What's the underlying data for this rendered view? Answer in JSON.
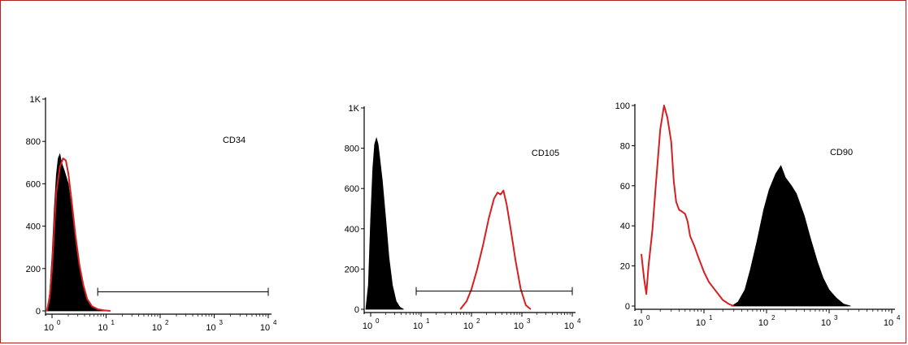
{
  "colors": {
    "frame": "#b22222",
    "control": "#000000",
    "stained": "#d62020",
    "axis": "#000000"
  },
  "chart_data": [
    {
      "type": "histogram",
      "marker": "CD34",
      "x_scale": "log",
      "xlim": [
        1,
        10000
      ],
      "ylim": [
        0,
        1000
      ],
      "y_ticks": [
        "0",
        "200",
        "400",
        "600",
        "800",
        "1K"
      ],
      "y_tick_values": [
        0,
        200,
        400,
        600,
        800,
        1000
      ],
      "x_ticks": [
        {
          "base": "10",
          "exp": "0"
        },
        {
          "base": "10",
          "exp": "1"
        },
        {
          "base": "10",
          "exp": "2"
        },
        {
          "base": "10",
          "exp": "3"
        },
        {
          "base": "10",
          "exp": "4"
        }
      ],
      "x_tick_values": [
        1,
        10,
        100,
        1000,
        10000
      ],
      "gate": {
        "from": 7,
        "to": 10000,
        "level": 90
      },
      "series": [
        {
          "kind": "filled",
          "x": [
            0.8,
            0.9,
            1.0,
            1.1,
            1.2,
            1.3,
            1.4,
            1.5,
            1.7,
            2.0,
            2.3,
            2.7,
            3.2,
            3.8,
            4.5,
            5.5,
            7,
            9,
            12
          ],
          "y": [
            0,
            80,
            260,
            480,
            640,
            720,
            740,
            700,
            660,
            600,
            480,
            340,
            200,
            110,
            50,
            20,
            8,
            3,
            0
          ]
        },
        {
          "kind": "outline",
          "x": [
            0.8,
            0.9,
            1.0,
            1.1,
            1.2,
            1.4,
            1.6,
            1.8,
            2.0,
            2.3,
            2.7,
            3.2,
            3.8,
            4.5,
            5.5,
            7,
            9,
            12
          ],
          "y": [
            0,
            60,
            200,
            400,
            560,
            680,
            720,
            710,
            650,
            520,
            360,
            220,
            120,
            55,
            22,
            8,
            3,
            0
          ]
        }
      ]
    },
    {
      "type": "histogram",
      "marker": "CD105",
      "x_scale": "log",
      "xlim": [
        1,
        10000
      ],
      "ylim": [
        0,
        1000
      ],
      "y_ticks": [
        "0",
        "200",
        "400",
        "600",
        "800",
        "1K"
      ],
      "y_tick_values": [
        0,
        200,
        400,
        600,
        800,
        1000
      ],
      "x_ticks": [
        {
          "base": "10",
          "exp": "0"
        },
        {
          "base": "10",
          "exp": "1"
        },
        {
          "base": "10",
          "exp": "2"
        },
        {
          "base": "10",
          "exp": "3"
        },
        {
          "base": "10",
          "exp": "4"
        }
      ],
      "x_tick_values": [
        1,
        10,
        100,
        1000,
        10000
      ],
      "gate": {
        "from": 8,
        "to": 10000,
        "level": 90
      },
      "series": [
        {
          "kind": "filled",
          "x": [
            0.8,
            0.9,
            1.0,
            1.1,
            1.2,
            1.3,
            1.4,
            1.5,
            1.7,
            2.0,
            2.3,
            2.7,
            3.2,
            3.8,
            4.5
          ],
          "y": [
            0,
            120,
            450,
            700,
            820,
            850,
            820,
            760,
            640,
            440,
            260,
            120,
            40,
            10,
            0
          ]
        },
        {
          "kind": "outline",
          "x": [
            60,
            80,
            100,
            130,
            170,
            220,
            280,
            330,
            380,
            430,
            500,
            600,
            750,
            950,
            1200,
            1500
          ],
          "y": [
            0,
            40,
            100,
            200,
            320,
            450,
            550,
            580,
            570,
            590,
            520,
            400,
            240,
            100,
            20,
            0
          ]
        }
      ]
    },
    {
      "type": "histogram",
      "marker": "CD90",
      "x_scale": "log",
      "xlim": [
        1,
        10000
      ],
      "ylim": [
        0,
        100
      ],
      "y_ticks": [
        "0",
        "20",
        "40",
        "60",
        "80",
        "100"
      ],
      "y_tick_values": [
        0,
        20,
        40,
        60,
        80,
        100
      ],
      "x_ticks": [
        {
          "base": "10",
          "exp": "0"
        },
        {
          "base": "10",
          "exp": "1"
        },
        {
          "base": "10",
          "exp": "2"
        },
        {
          "base": "10",
          "exp": "3"
        },
        {
          "base": "10",
          "exp": "4"
        }
      ],
      "x_tick_values": [
        1,
        10,
        100,
        1000,
        10000
      ],
      "series": [
        {
          "kind": "filled",
          "x": [
            28,
            35,
            45,
            55,
            70,
            90,
            110,
            140,
            170,
            200,
            250,
            300,
            400,
            500,
            650,
            800,
            1000,
            1300,
            1700,
            2200
          ],
          "y": [
            0,
            2,
            8,
            18,
            32,
            48,
            58,
            66,
            70,
            64,
            60,
            56,
            45,
            34,
            22,
            14,
            8,
            4,
            1,
            0
          ]
        },
        {
          "kind": "outline",
          "x": [
            1.0,
            1.1,
            1.2,
            1.3,
            1.5,
            1.7,
            2.0,
            2.3,
            2.6,
            3.0,
            3.3,
            3.6,
            4.0,
            4.5,
            5.0,
            5.5,
            6.0,
            7.0,
            8.0,
            10,
            12,
            15,
            20,
            25,
            30
          ],
          "y": [
            26,
            14,
            6,
            20,
            38,
            60,
            88,
            100,
            94,
            82,
            62,
            52,
            48,
            47,
            46,
            42,
            35,
            30,
            25,
            17,
            12,
            8,
            3,
            1,
            0
          ]
        }
      ]
    }
  ]
}
